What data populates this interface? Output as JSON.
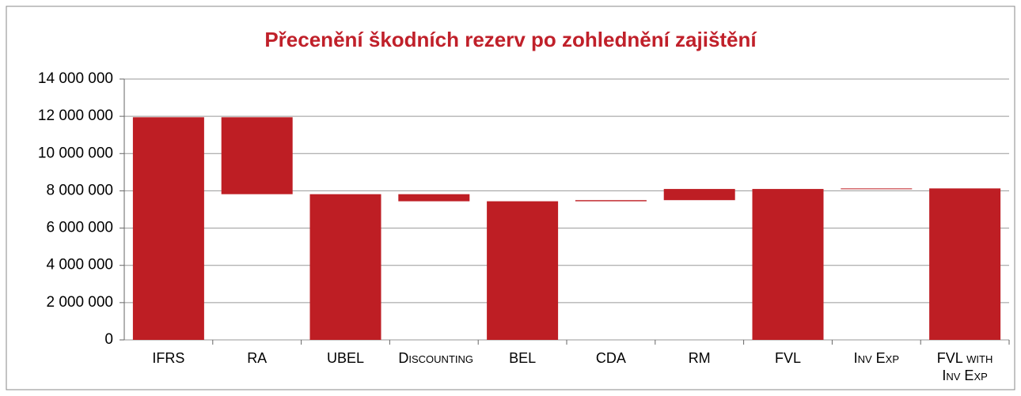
{
  "chart_data": {
    "type": "waterfall",
    "title": "Přecenění škodních rezerv po zohlednění zajištění",
    "categories": [
      "IFRS",
      "RA",
      "UBEL",
      "Discounting",
      "BEL",
      "CDA",
      "RM",
      "FVL",
      "Inv Exp",
      "FVL with Inv Exp"
    ],
    "values": [
      11950000,
      -4130000,
      7820000,
      -380000,
      7440000,
      60000,
      600000,
      8100000,
      30000,
      8130000
    ],
    "is_total": [
      true,
      false,
      true,
      false,
      true,
      false,
      false,
      true,
      false,
      true
    ],
    "color": "#be1e24",
    "ylim": [
      0,
      14000000
    ],
    "yticks": [
      0,
      {
        "value": 2000000,
        "label": "2 000 000"
      },
      {
        "value": 4000000,
        "label": "4 000 000"
      },
      {
        "value": 6000000,
        "label": "6 000 000"
      },
      {
        "value": 8000000,
        "label": "8 000 000"
      },
      {
        "value": 10000000,
        "label": "10 000 000"
      },
      {
        "value": 12000000,
        "label": "12 000 000"
      },
      {
        "value": 14000000,
        "label": "14 000 000"
      }
    ],
    "grid": true
  }
}
